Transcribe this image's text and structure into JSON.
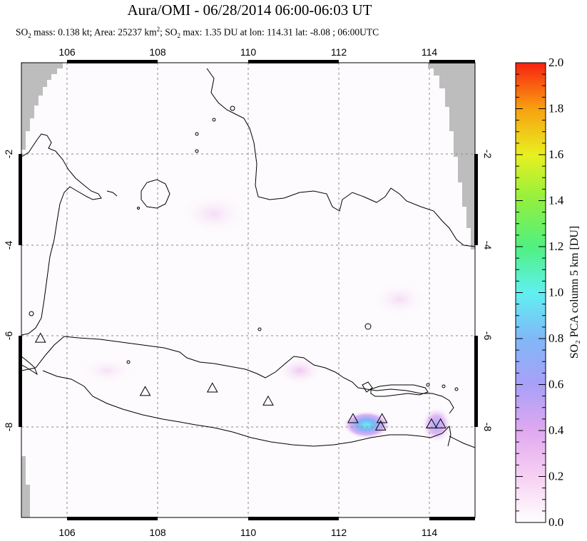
{
  "title": "Aura/OMI - 06/28/2014 06:00-06:03 UT",
  "subtitle": {
    "so2_mass": "SO",
    "sub2": "2",
    "part1": " mass: 0.138 kt; Area: 25237 km",
    "sup2": "2",
    "part2": "; SO",
    "sub3": "2",
    "part3": " max: 1.35 DU at lon: 114.31 lat: -8.08 ; 06:00UTC"
  },
  "map": {
    "lon_ticks": [
      "106",
      "108",
      "110",
      "112",
      "114"
    ],
    "lat_ticks": [
      "-2",
      "-4",
      "-6",
      "-8"
    ],
    "lon_range": [
      105,
      115
    ],
    "lat_range": [
      -10.2,
      0.2
    ],
    "volcanoes": [
      {
        "lon": 105.42,
        "lat": -6.1
      },
      {
        "lon": 107.73,
        "lat": -7.32
      },
      {
        "lon": 109.21,
        "lat": -7.24
      },
      {
        "lon": 110.44,
        "lat": -7.54
      },
      {
        "lon": 112.31,
        "lat": -7.94
      },
      {
        "lon": 112.95,
        "lat": -7.94
      },
      {
        "lon": 112.92,
        "lat": -8.11
      },
      {
        "lon": 114.04,
        "lat": -8.06
      },
      {
        "lon": 114.24,
        "lat": -8.06
      }
    ]
  },
  "colorbar": {
    "label": "SO₂ PCA column 5 km [DU]",
    "ticks": [
      "0.0",
      "0.2",
      "0.4",
      "0.6",
      "0.8",
      "1.0",
      "1.2",
      "1.4",
      "1.6",
      "1.8",
      "2.0"
    ],
    "colors": [
      "#ffffff",
      "#f7c8f0",
      "#d8a0f0",
      "#9aa0f8",
      "#70c8f8",
      "#60f0f0",
      "#60f090",
      "#90f040",
      "#e0f020",
      "#f8a010",
      "#f83010"
    ]
  }
}
